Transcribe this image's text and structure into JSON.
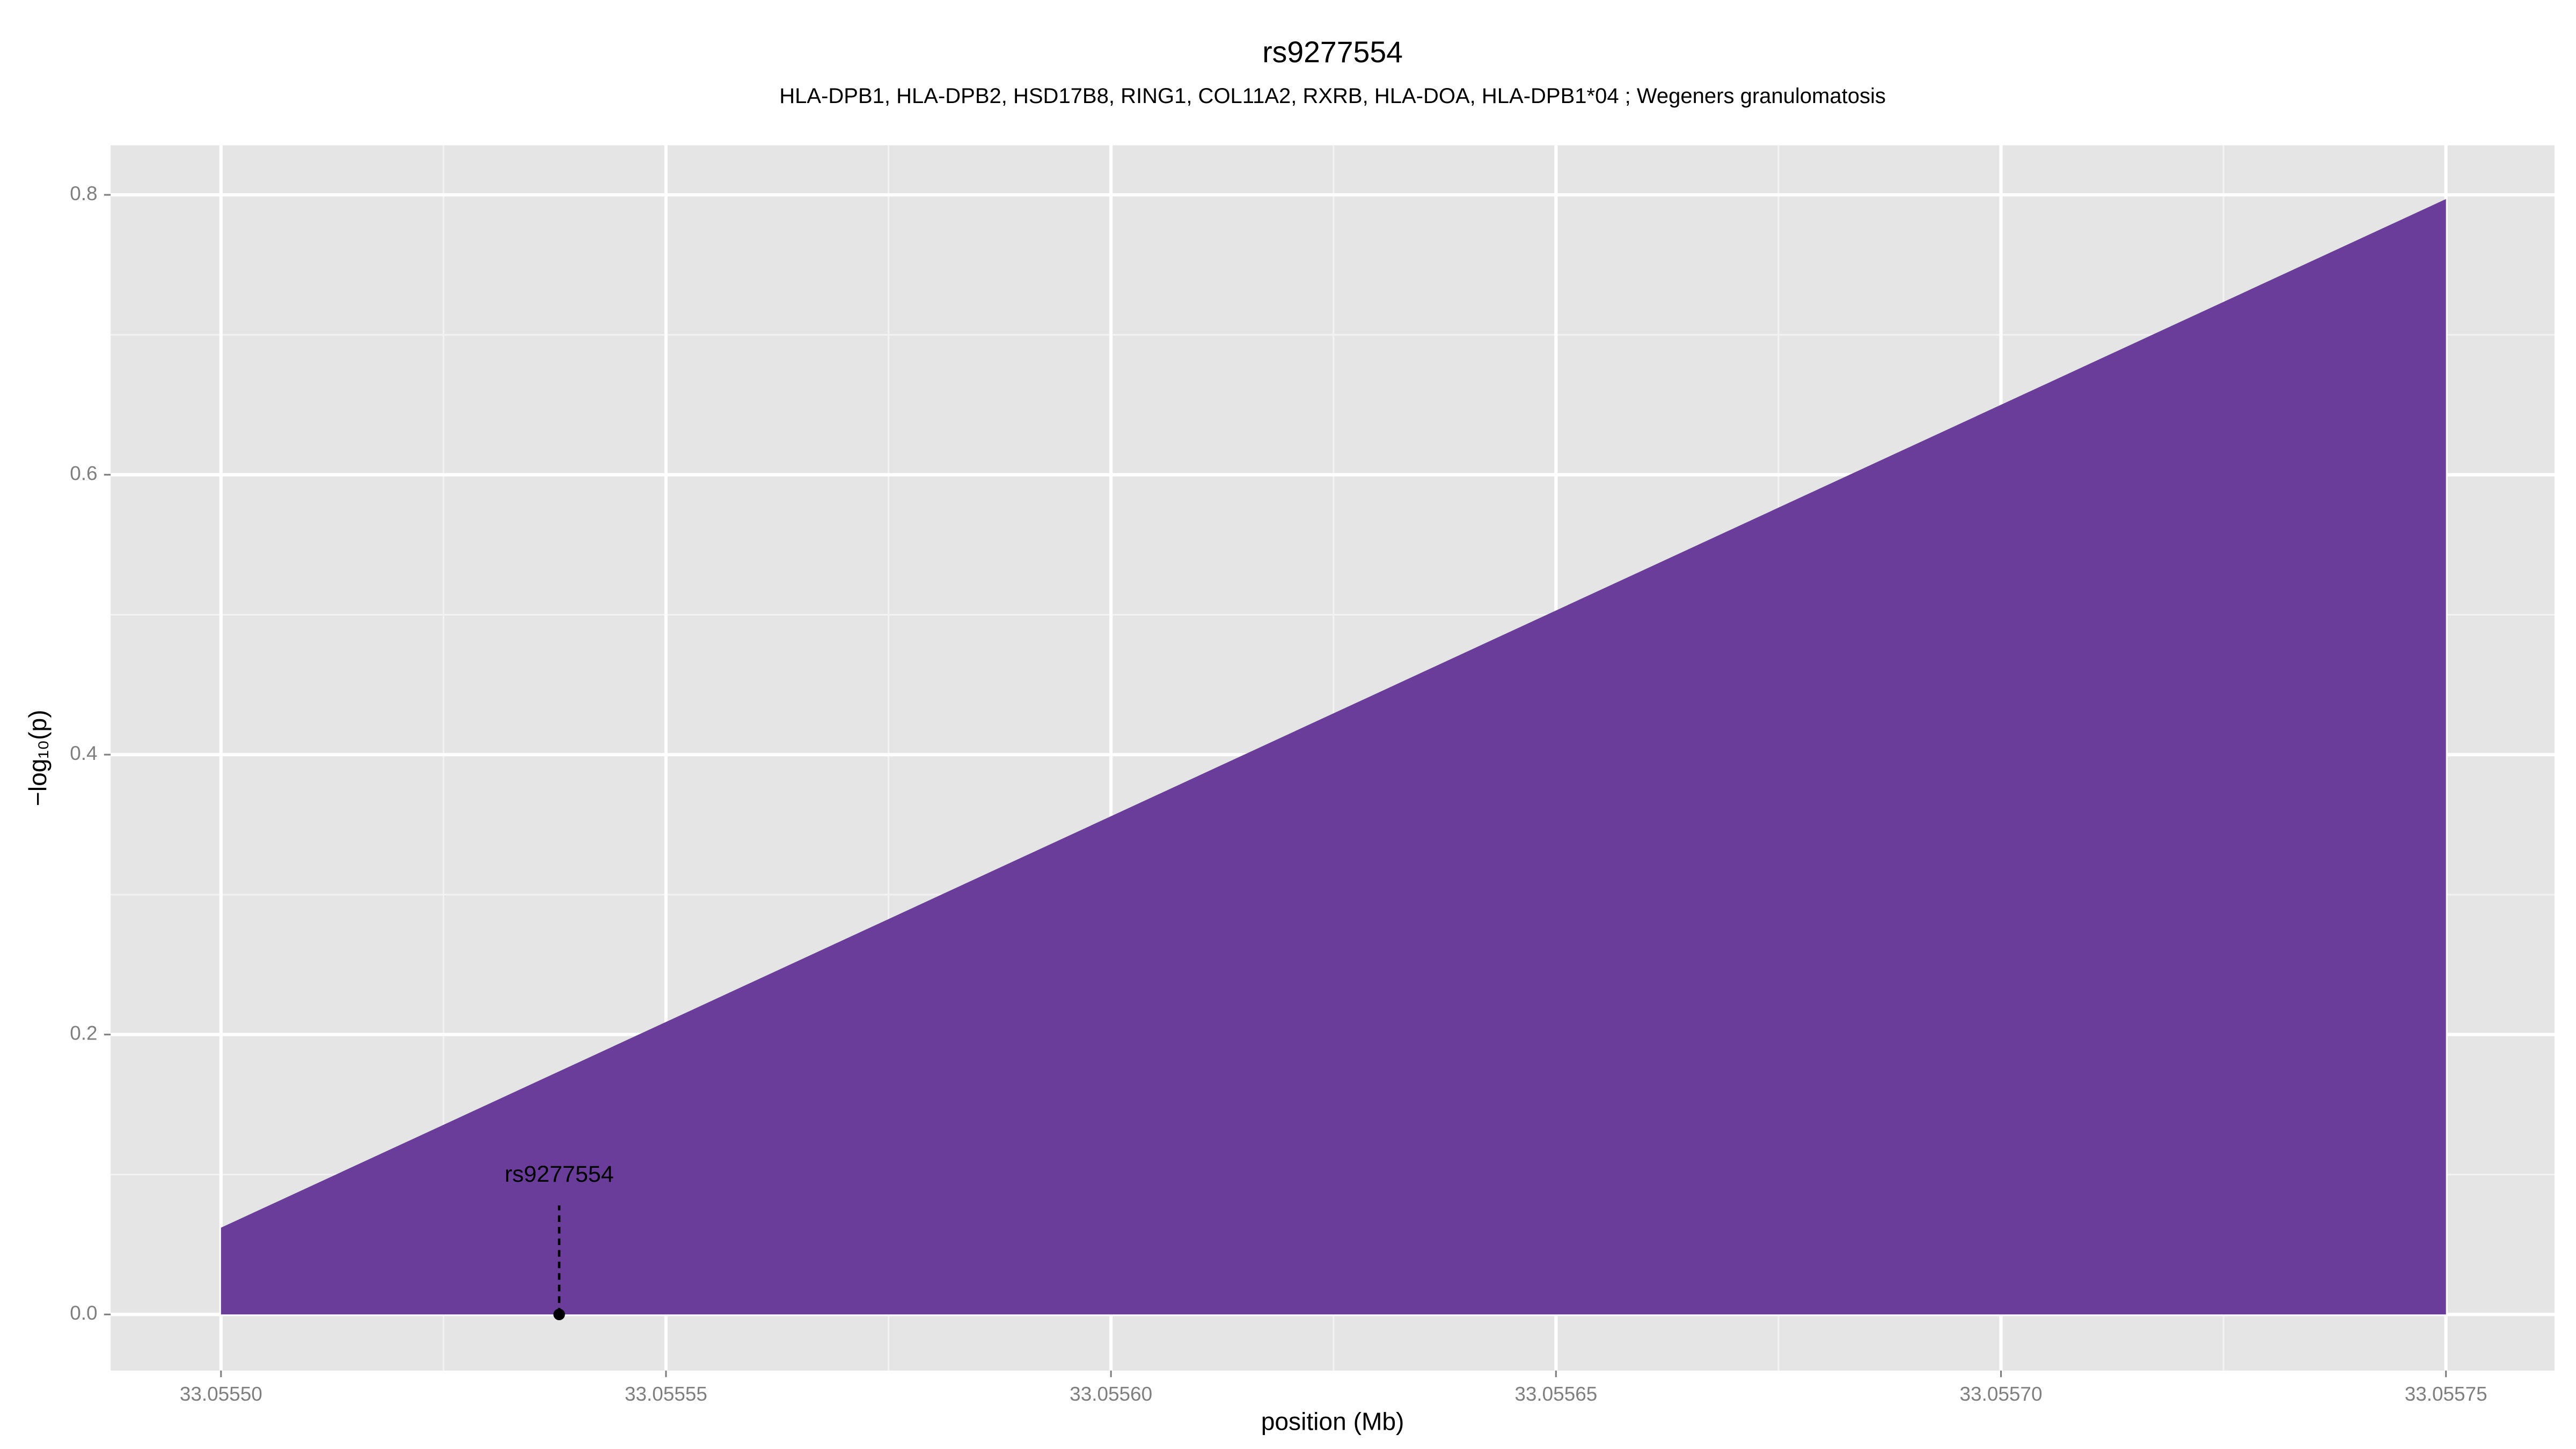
{
  "chart_data": {
    "type": "area",
    "title": "rs9277554",
    "subtitle": "HLA-DPB1, HLA-DPB2, HSD17B8, RING1, COL11A2, RXRB, HLA-DOA, HLA-DPB1*04 ; Wegeners granulomatosis",
    "x_label": "position (Mb)",
    "y_label": "−log₁₀(p)",
    "x": [
      33.0555,
      33.05575
    ],
    "values": [
      0.062,
      0.797
    ],
    "color": "#6a3d9a",
    "xlim": [
      33.0554876,
      33.0557622
    ],
    "ylim": [
      -0.0401,
      0.8354
    ],
    "xticks": [
      {
        "value": 33.0555,
        "label": "33.05550"
      },
      {
        "value": 33.05555,
        "label": "33.05555"
      },
      {
        "value": 33.0556,
        "label": "33.05560"
      },
      {
        "value": 33.05565,
        "label": "33.05565"
      },
      {
        "value": 33.0557,
        "label": "33.05570"
      },
      {
        "value": 33.05575,
        "label": "33.05575"
      }
    ],
    "yticks": [
      {
        "value": 0,
        "label": "0.0"
      },
      0.2,
      0.4,
      0.6,
      0.8
    ],
    "xminorticks": [
      33.055525,
      33.055575,
      33.055625,
      33.055675,
      33.055725
    ],
    "yminorticks": [
      0.1,
      0.3,
      0.5,
      0.7
    ],
    "grid": true,
    "annotation": {
      "text": "rs9277554",
      "x": 33.055538,
      "y": 0
    }
  }
}
